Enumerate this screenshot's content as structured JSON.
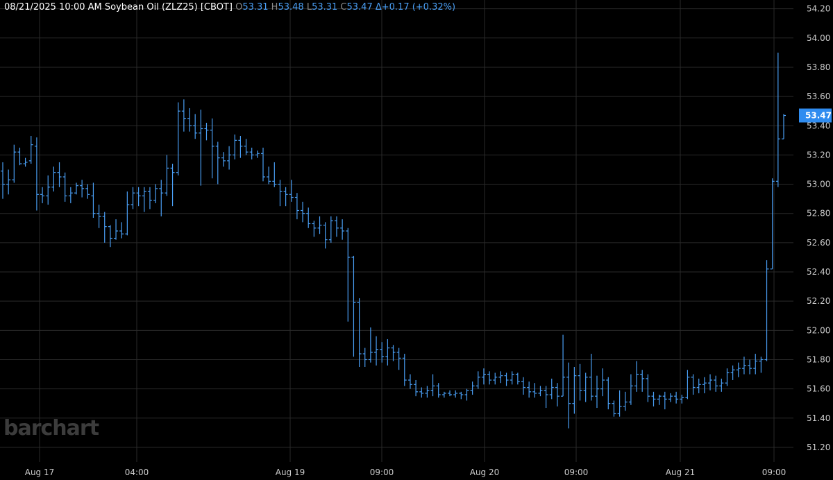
{
  "header": {
    "timestamp": "08/21/2025  10:00 AM",
    "instrument": "Soybean Oil (ZLZ25) [CBOT]",
    "open_key": "O",
    "open": "53.31",
    "high_key": "H",
    "high": "53.48",
    "low_key": "L",
    "low": "53.31",
    "close_key": "C",
    "close": "53.47",
    "change": "Δ+0.17 (+0.32%)"
  },
  "logo": "barchart",
  "last_price_label": "53.47",
  "colors": {
    "background": "#000000",
    "grid": "#2a2a2a",
    "bars": "#4a9ff5",
    "axis_text": "#cccccc",
    "price_badge": "#2f8cf0"
  },
  "chart_data": {
    "type": "ohlc",
    "y_axis": {
      "position": "right",
      "min": 51.1,
      "max": 54.26,
      "ticks": [
        "54.20",
        "54.00",
        "53.80",
        "53.60",
        "53.40",
        "53.20",
        "53.00",
        "52.80",
        "52.60",
        "52.40",
        "52.20",
        "52.00",
        "51.80",
        "51.60",
        "51.40",
        "51.20"
      ]
    },
    "x_axis": {
      "labels": [
        "Aug 17",
        "04:00",
        "Aug 19",
        "09:00",
        "Aug 20",
        "09:00",
        "Aug 21",
        "09:00"
      ]
    },
    "grid": true,
    "series": [
      {
        "ohlc": [
          [
            53.09,
            53.15,
            52.9,
            53.0
          ],
          [
            53.0,
            53.1,
            52.93,
            53.03
          ],
          [
            53.03,
            53.27,
            53.01,
            53.22
          ],
          [
            53.22,
            53.25,
            53.13,
            53.14
          ],
          [
            53.14,
            53.18,
            53.12,
            53.15
          ],
          [
            53.16,
            53.33,
            53.14,
            53.27
          ],
          [
            53.26,
            53.32,
            52.82,
            52.93
          ],
          [
            52.93,
            52.98,
            52.87,
            52.92
          ],
          [
            52.92,
            53.06,
            52.86,
            52.98
          ],
          [
            52.98,
            53.12,
            52.95,
            53.08
          ],
          [
            53.08,
            53.15,
            52.98,
            53.05
          ],
          [
            53.05,
            53.08,
            52.88,
            52.92
          ],
          [
            52.92,
            52.98,
            52.87,
            52.94
          ],
          [
            52.94,
            53.01,
            52.93,
            52.99
          ],
          [
            52.99,
            53.03,
            52.91,
            52.97
          ],
          [
            52.97,
            53.0,
            52.9,
            52.93
          ],
          [
            52.92,
            53.01,
            52.77,
            52.8
          ],
          [
            52.8,
            52.86,
            52.7,
            52.78
          ],
          [
            52.78,
            52.81,
            52.6,
            52.71
          ],
          [
            52.71,
            52.72,
            52.57,
            52.63
          ],
          [
            52.63,
            52.76,
            52.62,
            52.68
          ],
          [
            52.68,
            52.74,
            52.63,
            52.66
          ],
          [
            52.66,
            52.95,
            52.65,
            52.86
          ],
          [
            52.86,
            52.98,
            52.83,
            52.94
          ],
          [
            52.94,
            52.98,
            52.85,
            52.92
          ],
          [
            52.92,
            52.98,
            52.81,
            52.95
          ],
          [
            52.95,
            52.98,
            52.83,
            52.89
          ],
          [
            52.89,
            53.0,
            52.87,
            52.97
          ],
          [
            52.97,
            53.03,
            52.78,
            52.94
          ],
          [
            52.94,
            53.2,
            52.92,
            53.11
          ],
          [
            53.11,
            53.14,
            52.85,
            53.08
          ],
          [
            53.08,
            53.56,
            53.06,
            53.5
          ],
          [
            53.5,
            53.58,
            53.36,
            53.45
          ],
          [
            53.45,
            53.52,
            53.36,
            53.4
          ],
          [
            53.4,
            53.48,
            53.31,
            53.35
          ],
          [
            53.35,
            53.51,
            52.99,
            53.38
          ],
          [
            53.38,
            53.42,
            53.3,
            53.37
          ],
          [
            53.37,
            53.45,
            53.04,
            53.26
          ],
          [
            53.26,
            53.29,
            53.0,
            53.18
          ],
          [
            53.18,
            53.22,
            53.12,
            53.16
          ],
          [
            53.16,
            53.26,
            53.1,
            53.2
          ],
          [
            53.2,
            53.34,
            53.17,
            53.3
          ],
          [
            53.3,
            53.33,
            53.18,
            53.26
          ],
          [
            53.26,
            53.31,
            53.2,
            53.22
          ],
          [
            53.22,
            53.25,
            53.17,
            53.2
          ],
          [
            53.2,
            53.23,
            53.18,
            53.21
          ],
          [
            53.21,
            53.25,
            53.02,
            53.05
          ],
          [
            53.05,
            53.12,
            53.0,
            53.02
          ],
          [
            53.02,
            53.15,
            52.98,
            53.0
          ],
          [
            53.0,
            53.03,
            52.85,
            52.95
          ],
          [
            52.95,
            52.98,
            52.85,
            52.93
          ],
          [
            52.93,
            53.03,
            52.88,
            52.91
          ],
          [
            52.91,
            52.94,
            52.76,
            52.82
          ],
          [
            52.82,
            52.88,
            52.74,
            52.8
          ],
          [
            52.8,
            52.84,
            52.7,
            52.73
          ],
          [
            52.73,
            52.75,
            52.64,
            52.7
          ],
          [
            52.7,
            52.78,
            52.66,
            52.72
          ],
          [
            52.72,
            52.74,
            52.56,
            52.62
          ],
          [
            52.62,
            52.78,
            52.6,
            52.75
          ],
          [
            52.75,
            52.78,
            52.64,
            52.7
          ],
          [
            52.7,
            52.76,
            52.62,
            52.68
          ],
          [
            52.68,
            52.7,
            52.06,
            52.5
          ],
          [
            52.5,
            52.51,
            51.82,
            52.19
          ],
          [
            52.19,
            52.22,
            51.75,
            51.84
          ],
          [
            51.84,
            51.88,
            51.75,
            51.8
          ],
          [
            51.8,
            52.02,
            51.78,
            51.85
          ],
          [
            51.85,
            51.96,
            51.76,
            51.87
          ],
          [
            51.87,
            51.92,
            51.78,
            51.82
          ],
          [
            51.82,
            51.94,
            51.76,
            51.88
          ],
          [
            51.88,
            51.9,
            51.79,
            51.85
          ],
          [
            51.85,
            51.88,
            51.73,
            51.81
          ],
          [
            51.81,
            51.84,
            51.62,
            51.66
          ],
          [
            51.66,
            51.7,
            51.6,
            51.63
          ],
          [
            51.63,
            51.66,
            51.55,
            51.58
          ],
          [
            51.58,
            51.61,
            51.54,
            51.57
          ],
          [
            51.57,
            51.62,
            51.54,
            51.59
          ],
          [
            51.59,
            51.7,
            51.55,
            51.62
          ],
          [
            51.62,
            51.64,
            51.54,
            51.56
          ],
          [
            51.56,
            51.58,
            51.54,
            51.57
          ],
          [
            51.57,
            51.59,
            51.55,
            51.56
          ],
          [
            51.56,
            51.59,
            51.54,
            51.57
          ],
          [
            51.57,
            51.58,
            51.53,
            51.56
          ],
          [
            51.56,
            51.6,
            51.52,
            51.59
          ],
          [
            51.59,
            51.65,
            51.56,
            51.62
          ],
          [
            51.62,
            51.72,
            51.6,
            51.68
          ],
          [
            51.68,
            51.74,
            51.63,
            51.7
          ],
          [
            51.7,
            51.72,
            51.63,
            51.66
          ],
          [
            51.66,
            51.71,
            51.63,
            51.68
          ],
          [
            51.68,
            51.72,
            51.64,
            51.69
          ],
          [
            51.69,
            51.71,
            51.62,
            51.66
          ],
          [
            51.66,
            51.72,
            51.63,
            51.7
          ],
          [
            51.7,
            51.71,
            51.63,
            51.65
          ],
          [
            51.65,
            51.68,
            51.56,
            51.61
          ],
          [
            51.61,
            51.65,
            51.54,
            51.58
          ],
          [
            51.58,
            51.64,
            51.54,
            51.57
          ],
          [
            51.57,
            51.62,
            51.55,
            51.59
          ],
          [
            51.59,
            51.62,
            51.47,
            51.56
          ],
          [
            51.56,
            51.67,
            51.53,
            51.61
          ],
          [
            51.61,
            51.64,
            51.48,
            51.55
          ],
          [
            51.55,
            51.97,
            51.55,
            51.68
          ],
          [
            51.68,
            51.78,
            51.33,
            51.5
          ],
          [
            51.5,
            51.75,
            51.43,
            51.69
          ],
          [
            51.69,
            51.77,
            51.52,
            51.59
          ],
          [
            51.59,
            51.71,
            51.51,
            51.68
          ],
          [
            51.68,
            51.84,
            51.52,
            51.55
          ],
          [
            51.55,
            51.69,
            51.47,
            51.6
          ],
          [
            51.6,
            51.74,
            51.55,
            51.66
          ],
          [
            51.66,
            51.68,
            51.46,
            51.5
          ],
          [
            51.5,
            51.52,
            51.41,
            51.43
          ],
          [
            51.43,
            51.59,
            51.41,
            51.48
          ],
          [
            51.48,
            51.58,
            51.45,
            51.51
          ],
          [
            51.51,
            51.7,
            51.49,
            51.62
          ],
          [
            51.62,
            51.79,
            51.58,
            51.7
          ],
          [
            51.7,
            51.73,
            51.58,
            51.67
          ],
          [
            51.67,
            51.7,
            51.51,
            51.55
          ],
          [
            51.55,
            51.58,
            51.48,
            51.53
          ],
          [
            51.53,
            51.56,
            51.49,
            51.55
          ],
          [
            51.55,
            51.58,
            51.46,
            51.53
          ],
          [
            51.53,
            51.57,
            51.51,
            51.55
          ],
          [
            51.55,
            51.58,
            51.5,
            51.53
          ],
          [
            51.53,
            51.56,
            51.5,
            51.54
          ],
          [
            51.54,
            51.73,
            51.53,
            51.68
          ],
          [
            51.68,
            51.7,
            51.56,
            51.61
          ],
          [
            51.61,
            51.67,
            51.57,
            51.63
          ],
          [
            51.63,
            51.68,
            51.57,
            51.64
          ],
          [
            51.64,
            51.7,
            51.59,
            51.66
          ],
          [
            51.66,
            51.69,
            51.58,
            51.62
          ],
          [
            51.62,
            51.67,
            51.58,
            51.64
          ],
          [
            51.64,
            51.74,
            51.62,
            51.71
          ],
          [
            51.71,
            51.76,
            51.66,
            51.73
          ],
          [
            51.73,
            51.78,
            51.68,
            51.74
          ],
          [
            51.74,
            51.82,
            51.7,
            51.76
          ],
          [
            51.76,
            51.8,
            51.7,
            51.74
          ],
          [
            51.74,
            51.84,
            51.7,
            51.79
          ],
          [
            51.79,
            51.82,
            51.71,
            51.8
          ],
          [
            51.8,
            52.48,
            51.79,
            52.42
          ],
          [
            52.42,
            53.04,
            52.42,
            53.02
          ],
          [
            53.02,
            53.9,
            52.98,
            53.31
          ],
          [
            53.31,
            53.48,
            53.31,
            53.47
          ]
        ]
      }
    ]
  }
}
